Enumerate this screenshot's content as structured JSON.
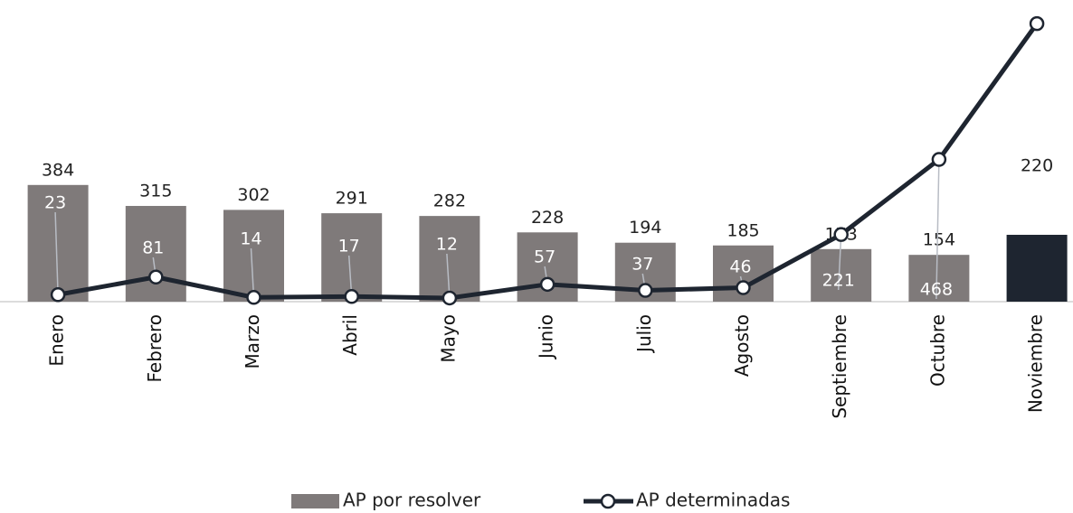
{
  "chart_data": {
    "type": "bar-line",
    "categories": [
      "Enero",
      "Febrero",
      "Marzo",
      "Abril",
      "Mayo",
      "Junio",
      "Julio",
      "Agosto",
      "Septiembre",
      "Octubre",
      "Noviembre"
    ],
    "ylim": [
      0,
      960
    ],
    "series": [
      {
        "name": "AP por resolver",
        "type": "bar",
        "color": "#7f7a7a",
        "colors": [
          "#7f7a7a",
          "#7f7a7a",
          "#7f7a7a",
          "#7f7a7a",
          "#7f7a7a",
          "#7f7a7a",
          "#7f7a7a",
          "#7f7a7a",
          "#7f7a7a",
          "#7f7a7a",
          "#1e2530"
        ],
        "values": [
          384,
          315,
          302,
          291,
          282,
          228,
          194,
          185,
          173,
          154,
          220
        ]
      },
      {
        "name": "AP determinadas",
        "type": "line",
        "color": "#1e2530",
        "values": [
          23,
          81,
          14,
          17,
          12,
          57,
          37,
          46,
          221,
          468,
          915
        ],
        "value_labels": [
          "23",
          "81",
          "14",
          "17",
          "12",
          "57",
          "37",
          "46",
          "221",
          "468",
          null
        ]
      }
    ]
  }
}
